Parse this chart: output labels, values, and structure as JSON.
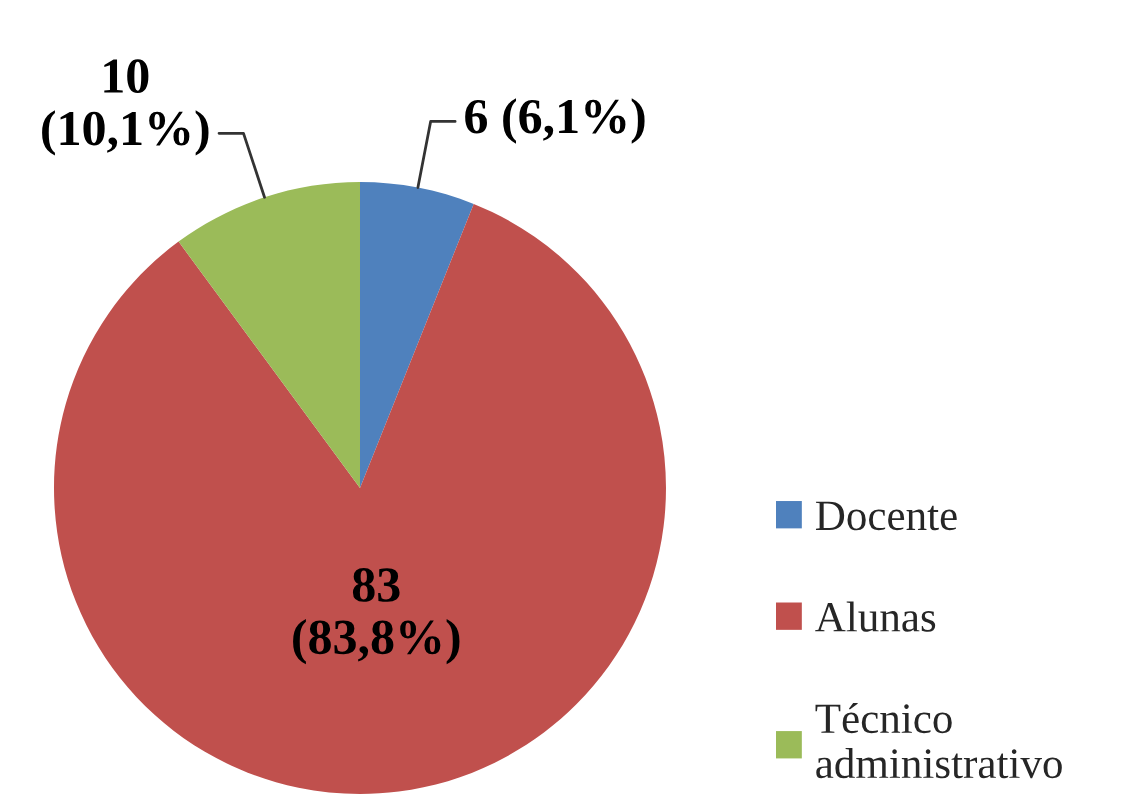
{
  "chart_data": {
    "type": "pie",
    "categories": [
      "Docente",
      "Alunas",
      "Técnico\nadministrativo"
    ],
    "values": [
      6,
      83,
      10
    ],
    "colors": [
      "#4f81bd",
      "#c0504d",
      "#9bbb59"
    ],
    "value_labels": [
      "6 (6,1%)",
      "83\n(83,8%)",
      "10\n(10,1%)"
    ],
    "legend": "right"
  }
}
